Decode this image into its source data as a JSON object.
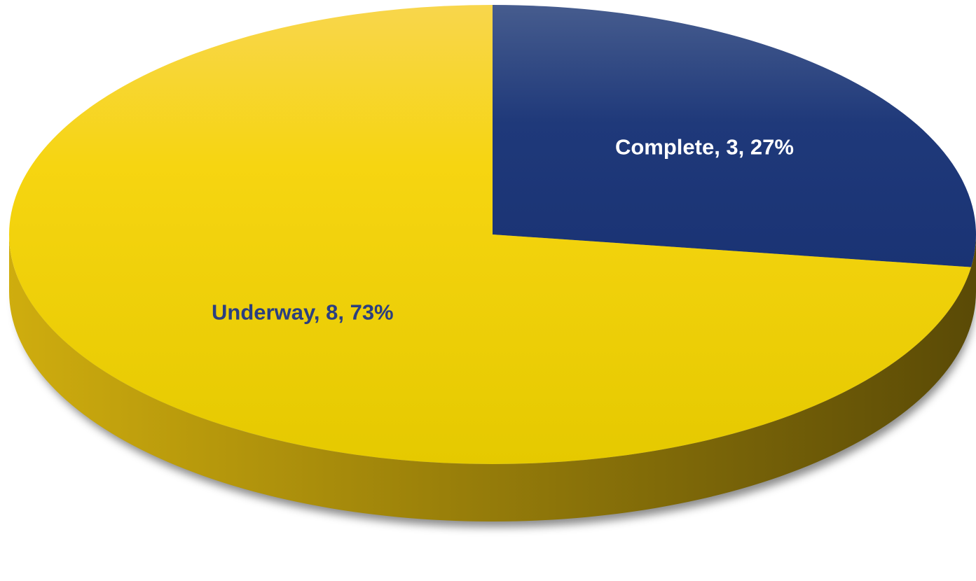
{
  "chart_data": {
    "type": "pie",
    "variant": "3d",
    "title": "",
    "legend": "none",
    "slices": [
      {
        "name": "Complete",
        "value": 3,
        "percent": 27,
        "color": "#1d3a7c",
        "label": "Complete, 3, 27%",
        "label_color": "#ffffff"
      },
      {
        "name": "Underway",
        "value": 8,
        "percent": 73,
        "color": "#f4d31a",
        "label": "Underway, 8, 73%",
        "label_color": "#2b3f80"
      }
    ]
  }
}
